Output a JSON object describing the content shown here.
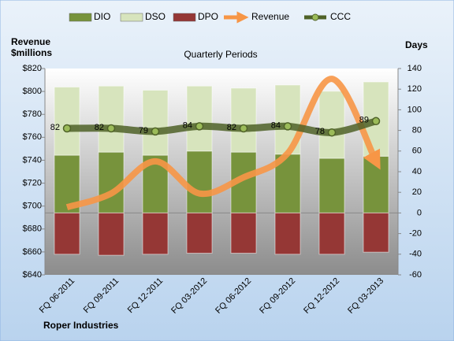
{
  "chart_data": {
    "type": "combo",
    "subtitle": "Quarterly Periods",
    "y_label": "Revenue $millions",
    "y2_label": "Days",
    "footer": "Roper Industries",
    "categories": [
      "FQ 06-2011",
      "FQ 09-2011",
      "FQ 12-2011",
      "FQ 03-2012",
      "FQ 06-2012",
      "FQ 09-2012",
      "FQ 12-2012",
      "FQ 03-2013"
    ],
    "ylim": [
      640,
      820
    ],
    "yticks": [
      {
        "value": 640,
        "label": "$640"
      },
      {
        "value": 660,
        "label": "$660"
      },
      {
        "value": 680,
        "label": "$680"
      },
      {
        "value": 700,
        "label": "$700"
      },
      {
        "value": 720,
        "label": "$720"
      },
      {
        "value": 740,
        "label": "$740"
      },
      {
        "value": 760,
        "label": "$760"
      },
      {
        "value": 780,
        "label": "$780"
      },
      {
        "value": 800,
        "label": "$800"
      },
      {
        "value": 820,
        "label": "$820"
      }
    ],
    "y2lim": [
      -60,
      140
    ],
    "y2ticks": [
      -60,
      -40,
      -20,
      0,
      20,
      40,
      60,
      80,
      100,
      120,
      140
    ],
    "series": [
      {
        "name": "DIO",
        "type": "bar",
        "axis": "y2",
        "color": "#77933c",
        "values": [
          56,
          59,
          56,
          60,
          59,
          57,
          53,
          55
        ]
      },
      {
        "name": "DSO",
        "type": "bar",
        "axis": "y2",
        "color": "#d7e4bd",
        "values": [
          66,
          64,
          63,
          63,
          62,
          67,
          65,
          72
        ]
      },
      {
        "name": "DPO",
        "type": "bar",
        "axis": "y2",
        "color": "#953735",
        "values": [
          -40,
          -41,
          -40,
          -39,
          -39,
          -40,
          -40,
          -38
        ]
      },
      {
        "name": "Revenue",
        "type": "line",
        "axis": "y",
        "color": "#f79646",
        "values": [
          699,
          711,
          739,
          711,
          725,
          746,
          811,
          739
        ]
      },
      {
        "name": "CCC",
        "type": "line",
        "axis": "y2",
        "color": "#4f6228",
        "values": [
          82,
          82,
          79,
          84,
          82,
          84,
          78,
          89
        ]
      }
    ]
  }
}
